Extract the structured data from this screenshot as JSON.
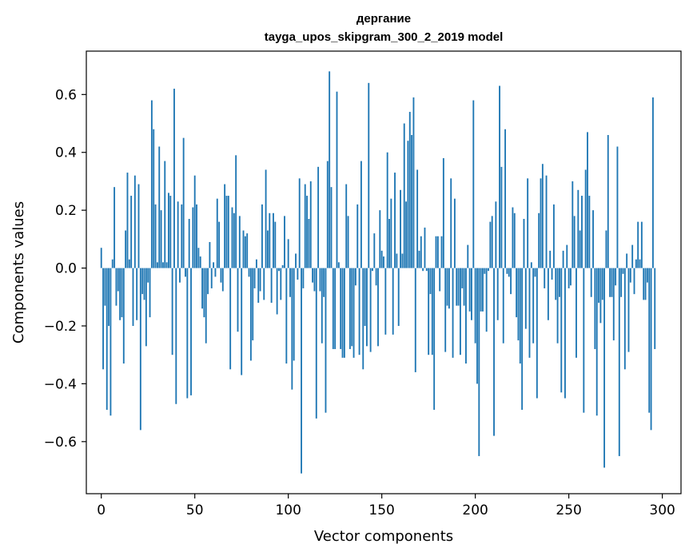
{
  "chart_data": {
    "type": "bar",
    "title": "дергание",
    "subtitle": "tayga_upos_skipgram_300_2_2019 model",
    "xlabel": "Vector components",
    "ylabel": "Components values",
    "xlim": [
      -8,
      310
    ],
    "ylim": [
      -0.78,
      0.75
    ],
    "xticks": [
      0,
      50,
      100,
      150,
      200,
      250,
      300
    ],
    "yticks": [
      -0.6,
      -0.4,
      -0.2,
      0.0,
      0.2,
      0.4,
      0.6
    ],
    "ytick_labels": [
      "−0.6",
      "−0.4",
      "−0.2",
      "0.0",
      "0.2",
      "0.4",
      "0.6"
    ],
    "bar_color": "#1f77b4",
    "bar_width": 0.8,
    "values": [
      0.07,
      -0.35,
      -0.13,
      -0.49,
      -0.2,
      -0.51,
      0.03,
      0.28,
      -0.13,
      -0.08,
      -0.18,
      -0.17,
      -0.33,
      0.13,
      0.33,
      0.03,
      0.25,
      -0.2,
      0.32,
      -0.18,
      0.29,
      -0.56,
      -0.09,
      -0.11,
      -0.27,
      -0.05,
      -0.17,
      0.58,
      0.48,
      0.22,
      0.02,
      0.42,
      0.2,
      0.02,
      0.37,
      0.02,
      0.26,
      0.25,
      -0.3,
      0.62,
      -0.47,
      0.23,
      -0.05,
      0.22,
      0.45,
      -0.03,
      -0.45,
      0.17,
      -0.44,
      0.21,
      0.32,
      0.22,
      0.07,
      0.04,
      -0.14,
      -0.17,
      -0.26,
      -0.09,
      0.09,
      -0.07,
      0.02,
      -0.03,
      0.24,
      0.16,
      -0.05,
      -0.08,
      0.29,
      0.25,
      0.25,
      -0.35,
      0.21,
      0.19,
      0.39,
      -0.22,
      0.18,
      -0.37,
      0.13,
      0.11,
      0.12,
      -0.03,
      -0.32,
      -0.25,
      -0.07,
      0.03,
      -0.12,
      -0.08,
      0.22,
      -0.11,
      0.34,
      0.13,
      0.19,
      -0.12,
      0.19,
      0.16,
      -0.16,
      -0.01,
      -0.11,
      0.01,
      0.18,
      -0.33,
      0.1,
      -0.1,
      -0.42,
      -0.32,
      0.05,
      -0.04,
      0.31,
      -0.71,
      -0.07,
      0.29,
      0.25,
      0.17,
      0.3,
      -0.05,
      -0.08,
      -0.52,
      0.35,
      -0.08,
      -0.26,
      -0.1,
      -0.5,
      0.37,
      0.68,
      0.28,
      -0.28,
      -0.28,
      0.61,
      0.02,
      -0.28,
      -0.31,
      -0.31,
      0.29,
      0.18,
      -0.28,
      -0.27,
      -0.31,
      -0.06,
      0.22,
      -0.3,
      0.37,
      -0.35,
      -0.2,
      -0.27,
      0.64,
      -0.29,
      -0.01,
      0.12,
      -0.06,
      -0.27,
      0.2,
      0.06,
      0.04,
      -0.23,
      0.4,
      0.17,
      0.24,
      -0.23,
      0.33,
      0.05,
      -0.2,
      0.27,
      0.05,
      0.5,
      0.23,
      0.44,
      0.54,
      0.46,
      0.59,
      -0.36,
      0.34,
      0.06,
      0.11,
      -0.01,
      0.14,
      -0.01,
      -0.3,
      -0.09,
      -0.3,
      -0.49,
      0.11,
      0.11,
      -0.08,
      0.11,
      0.38,
      -0.29,
      -0.13,
      -0.14,
      0.31,
      -0.31,
      0.24,
      -0.13,
      -0.13,
      -0.3,
      -0.07,
      -0.13,
      -0.33,
      0.08,
      -0.15,
      -0.18,
      0.58,
      -0.26,
      -0.4,
      -0.65,
      -0.15,
      -0.15,
      -0.02,
      -0.22,
      -0.01,
      0.16,
      0.18,
      -0.58,
      0.23,
      -0.18,
      0.63,
      0.35,
      -0.26,
      0.48,
      -0.02,
      -0.03,
      -0.09,
      0.21,
      0.19,
      -0.17,
      -0.25,
      -0.33,
      -0.49,
      0.17,
      -0.21,
      0.31,
      -0.31,
      0.02,
      -0.26,
      -0.03,
      -0.45,
      0.19,
      0.31,
      0.36,
      -0.07,
      0.32,
      -0.18,
      0.06,
      -0.04,
      0.22,
      -0.11,
      -0.26,
      -0.1,
      -0.43,
      0.06,
      -0.45,
      0.08,
      -0.07,
      -0.06,
      0.3,
      0.18,
      -0.31,
      0.27,
      0.13,
      0.25,
      -0.5,
      0.34,
      0.47,
      0.25,
      -0.1,
      0.2,
      -0.28,
      -0.51,
      -0.12,
      -0.19,
      -0.11,
      -0.69,
      0.13,
      0.46,
      -0.1,
      -0.1,
      -0.25,
      -0.06,
      0.42,
      -0.65,
      -0.1,
      -0.02,
      -0.35,
      0.05,
      -0.29,
      -0.05,
      0.08,
      -0.09,
      0.03,
      0.16,
      0.03,
      0.16,
      -0.11,
      -0.11,
      -0.05,
      -0.5,
      -0.56,
      0.59,
      -0.28
    ]
  }
}
